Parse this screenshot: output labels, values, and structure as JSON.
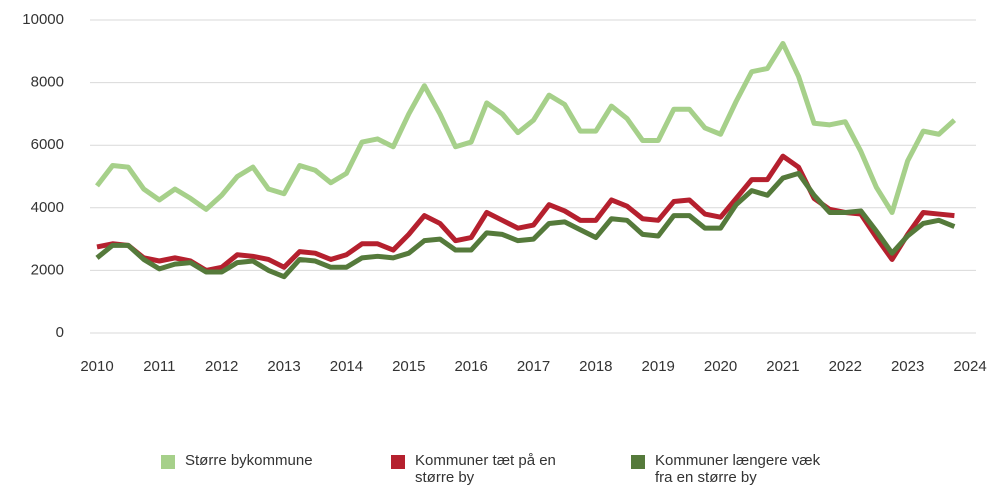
{
  "chart_data": {
    "type": "line",
    "x": [
      2010,
      2010.25,
      2010.5,
      2010.75,
      2011,
      2011.25,
      2011.5,
      2011.75,
      2012,
      2012.25,
      2012.5,
      2012.75,
      2013,
      2013.25,
      2013.5,
      2013.75,
      2014,
      2014.25,
      2014.5,
      2014.75,
      2015,
      2015.25,
      2015.5,
      2015.75,
      2016,
      2016.25,
      2016.5,
      2016.75,
      2017,
      2017.25,
      2017.5,
      2017.75,
      2018,
      2018.25,
      2018.5,
      2018.75,
      2019,
      2019.25,
      2019.5,
      2019.75,
      2020,
      2020.25,
      2020.5,
      2020.75,
      2021,
      2021.25,
      2021.5,
      2021.75,
      2022,
      2022.25,
      2022.5,
      2022.75,
      2023,
      2023.25,
      2023.5,
      2023.75
    ],
    "series": [
      {
        "name": "Større bykommune",
        "color": "#a6d08a",
        "values": [
          4700,
          5350,
          5300,
          4600,
          4250,
          4600,
          4300,
          3950,
          4400,
          5000,
          5300,
          4600,
          4450,
          5350,
          5200,
          4800,
          5100,
          6100,
          6200,
          5950,
          7000,
          7900,
          7000,
          5950,
          6100,
          7350,
          7000,
          6400,
          6800,
          7600,
          7300,
          6450,
          6450,
          7250,
          6850,
          6150,
          6150,
          7150,
          7150,
          6550,
          6350,
          7400,
          8350,
          8450,
          9250,
          8200,
          6700,
          6650,
          6750,
          5800,
          4650,
          3850,
          5500,
          6450,
          6350,
          6800
        ]
      },
      {
        "name": "Kommuner tæt på en større by",
        "color": "#b5202e",
        "values": [
          2750,
          2850,
          2800,
          2400,
          2300,
          2400,
          2300,
          2000,
          2100,
          2500,
          2450,
          2350,
          2100,
          2600,
          2550,
          2350,
          2500,
          2850,
          2850,
          2650,
          3150,
          3750,
          3500,
          2950,
          3050,
          3850,
          3600,
          3350,
          3450,
          4100,
          3900,
          3600,
          3600,
          4250,
          4050,
          3650,
          3600,
          4200,
          4250,
          3800,
          3700,
          4300,
          4900,
          4900,
          5650,
          5300,
          4300,
          3950,
          3850,
          3800,
          3050,
          2350,
          3150,
          3850,
          3800,
          3750
        ]
      },
      {
        "name": "Kommuner længere væk fra en større by",
        "color": "#557a3b",
        "values": [
          2400,
          2800,
          2800,
          2350,
          2050,
          2200,
          2250,
          1950,
          1950,
          2250,
          2300,
          2000,
          1800,
          2350,
          2300,
          2100,
          2100,
          2400,
          2450,
          2400,
          2550,
          2950,
          3000,
          2650,
          2650,
          3200,
          3150,
          2950,
          3000,
          3500,
          3550,
          3300,
          3050,
          3650,
          3600,
          3150,
          3100,
          3750,
          3750,
          3350,
          3350,
          4100,
          4550,
          4400,
          4950,
          5100,
          4400,
          3850,
          3850,
          3900,
          3250,
          2550,
          3100,
          3500,
          3600,
          3400
        ]
      }
    ],
    "xlim": [
      2010,
      2024
    ],
    "xticks": [
      2010,
      2011,
      2012,
      2013,
      2014,
      2015,
      2016,
      2017,
      2018,
      2019,
      2020,
      2021,
      2022,
      2023,
      2024
    ],
    "ylim": [
      0,
      10000
    ],
    "yticks": [
      0,
      2000,
      4000,
      6000,
      8000,
      10000
    ],
    "grid": true,
    "legend": "bottom"
  }
}
